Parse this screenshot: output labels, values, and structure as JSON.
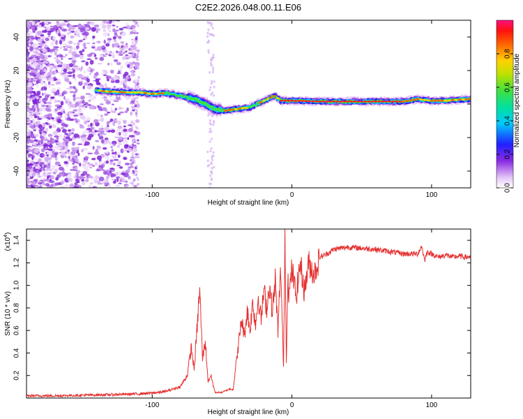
{
  "title": "C2E2.2026.048.00.11.E06",
  "chart_data": [
    {
      "type": "heatmap",
      "xlabel": "Height of straight line (km)",
      "ylabel": "Frequency (Hz)",
      "xlim": [
        -190,
        128
      ],
      "ylim": [
        -50,
        50
      ],
      "xticks": [
        -100,
        0,
        100
      ],
      "xtick_labels": [
        "-100",
        "0",
        "100"
      ],
      "yticks": [
        -40,
        -20,
        0,
        20,
        40
      ],
      "ytick_labels": [
        "-40",
        "-20",
        "0",
        "20",
        "40"
      ],
      "colorbar": {
        "label": "Normalized spectral amplitude",
        "range": [
          0,
          1
        ],
        "ticks": [
          0.0,
          0.2,
          0.4,
          0.6,
          0.8
        ],
        "tick_labels": [
          "0.0",
          "0.2",
          "0.4",
          "0.6",
          "0.8"
        ]
      },
      "ridge": {
        "x": [
          -140,
          -130,
          -120,
          -110,
          -100,
          -90,
          -80,
          -70,
          -62,
          -55,
          -48,
          -40,
          -30,
          -20,
          -12,
          -8,
          0,
          20,
          40,
          60,
          80,
          90,
          100,
          110,
          128
        ],
        "y": [
          8,
          7.5,
          7,
          7,
          6,
          6.5,
          5,
          3,
          0,
          -3,
          -4,
          -3,
          -2,
          2,
          5,
          2,
          2,
          1.5,
          1.5,
          1.5,
          1.5,
          3,
          2,
          2,
          3
        ]
      }
    },
    {
      "type": "line",
      "xlabel": "Height of straight line (km)",
      "ylabel": "SNR (10 * v/v)",
      "y_scale_label": "(x10",
      "y_scale_exponent": "4",
      "xlim": [
        -190,
        128
      ],
      "ylim": [
        0,
        1.5
      ],
      "xticks": [
        -100,
        0,
        100
      ],
      "xtick_labels": [
        "-100",
        "0",
        "100"
      ],
      "yticks": [
        0.2,
        0.4,
        0.6,
        0.8,
        1.0,
        1.2,
        1.4
      ],
      "ytick_labels": [
        "0.2",
        "0.4",
        "0.6",
        "0.8",
        "1.0",
        "1.2",
        "1.4"
      ],
      "series": [
        {
          "name": "SNR",
          "color": "#e53030",
          "x": [
            -190,
            -170,
            -150,
            -130,
            -115,
            -105,
            -95,
            -90,
            -85,
            -80,
            -75,
            -72,
            -70,
            -68,
            -66,
            -64,
            -62,
            -60,
            -58,
            -55,
            -50,
            -45,
            -42,
            -40,
            -38,
            -36,
            -34,
            -32,
            -30,
            -28,
            -26,
            -24,
            -22,
            -20,
            -18,
            -16,
            -14,
            -12,
            -10,
            -8,
            -6,
            -5,
            -4,
            -3,
            -2,
            0,
            3,
            6,
            9,
            12,
            16,
            20,
            25,
            30,
            35,
            40,
            50,
            60,
            70,
            80,
            90,
            93,
            95,
            97,
            100,
            105,
            110,
            115,
            120,
            125,
            128
          ],
          "y": [
            0.02,
            0.02,
            0.025,
            0.03,
            0.035,
            0.04,
            0.05,
            0.06,
            0.08,
            0.1,
            0.2,
            0.45,
            0.25,
            0.6,
            0.97,
            0.35,
            0.5,
            0.15,
            0.2,
            0.05,
            0.05,
            0.08,
            0.08,
            0.3,
            0.5,
            0.7,
            0.55,
            0.78,
            0.6,
            0.85,
            0.65,
            0.9,
            0.7,
            0.95,
            0.8,
            1.0,
            0.75,
            1.05,
            0.6,
            1.15,
            0.25,
            1.5,
            0.3,
            1.1,
            0.9,
            1.15,
            0.9,
            1.2,
            0.95,
            1.2,
            1.1,
            1.25,
            1.28,
            1.32,
            1.33,
            1.34,
            1.33,
            1.32,
            1.3,
            1.28,
            1.28,
            1.35,
            1.22,
            1.3,
            1.28,
            1.25,
            1.27,
            1.25,
            1.26,
            1.25,
            1.26
          ]
        }
      ]
    }
  ]
}
